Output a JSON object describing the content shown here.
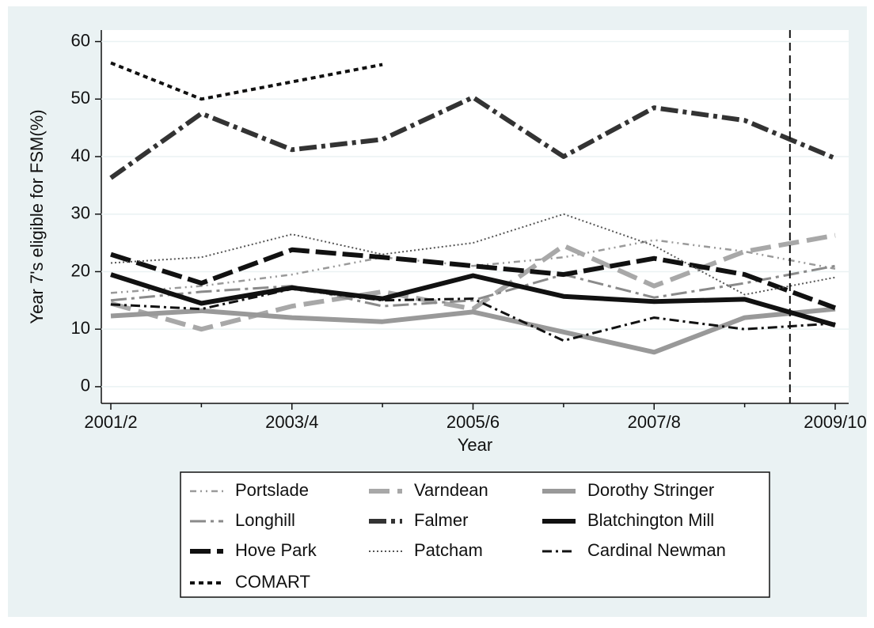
{
  "chart_data": {
    "type": "line",
    "x_label": "Year",
    "y_label": "Year 7's eligible for FSM(%)",
    "categories": [
      "2001/2",
      null,
      "2003/4",
      null,
      "2005/6",
      null,
      "2007/8",
      null,
      "2009/10"
    ],
    "ylim": [
      -2.9,
      62
    ],
    "yticks": [
      0,
      10,
      20,
      30,
      40,
      50,
      60
    ],
    "grid": true,
    "vline": 7.5,
    "legend": "bottom",
    "series": [
      {
        "name": "Portslade",
        "color": "#9a9a9a",
        "width": 2.5,
        "dash": "8 5 2 5 2 5",
        "values": [
          16.3,
          17.5,
          19.5,
          22.5,
          21,
          22.5,
          25.5,
          23.5,
          20.5
        ]
      },
      {
        "name": "Varndean",
        "color": "#a8a8a8",
        "width": 6,
        "dash": "26 10",
        "values": [
          14.5,
          10,
          14,
          16.5,
          13.5,
          24.5,
          17.5,
          23.5,
          26.3
        ]
      },
      {
        "name": "Dorothy Stringer",
        "color": "#999999",
        "width": 6,
        "dash": "none",
        "values": [
          12.3,
          13.2,
          12,
          11.3,
          13,
          9.5,
          6,
          12,
          13.5
        ]
      },
      {
        "name": "Longhill",
        "color": "#8a8a8a",
        "width": 3,
        "dash": "20 6 4 6",
        "values": [
          15,
          16.5,
          17.5,
          14,
          15,
          19.5,
          15.5,
          18,
          21
        ]
      },
      {
        "name": "Falmer",
        "color": "#333333",
        "width": 6,
        "dash": "22 6 5 6",
        "values": [
          36.3,
          47.5,
          41.2,
          43,
          50.3,
          40,
          48.5,
          46.3,
          39.7
        ]
      },
      {
        "name": "Blatchington Mill",
        "color": "#111111",
        "width": 6,
        "dash": "none",
        "values": [
          19.5,
          14.5,
          17.2,
          15.3,
          19.3,
          15.7,
          14.8,
          15.2,
          10.7
        ]
      },
      {
        "name": "Hove Park",
        "color": "#111111",
        "width": 6,
        "dash": "26 8",
        "values": [
          23,
          18,
          23.8,
          22.5,
          21,
          19.5,
          22.3,
          19.5,
          13.7
        ]
      },
      {
        "name": "Patcham",
        "color": "#555555",
        "width": 2,
        "dash": "2 3",
        "values": [
          21.5,
          22.5,
          26.5,
          23,
          25,
          30,
          24.5,
          16,
          19
        ]
      },
      {
        "name": "Cardinal Newman",
        "color": "#111111",
        "width": 3,
        "dash": "12 5 3 5",
        "values": [
          14.3,
          13.5,
          17,
          15,
          15.3,
          8,
          12,
          10,
          11
        ]
      },
      {
        "name": "COMART",
        "color": "#111111",
        "width": 4,
        "dash": "6 5",
        "values": [
          56.3,
          50,
          53,
          56,
          null,
          null,
          null,
          null,
          null
        ]
      }
    ]
  }
}
